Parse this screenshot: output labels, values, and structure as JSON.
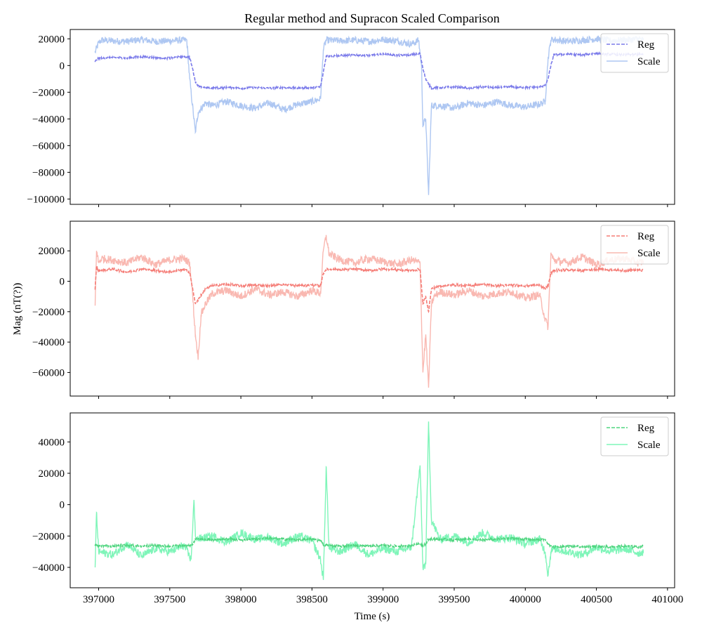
{
  "figure": {
    "title": "Regular method and Supracon Scaled Comparison",
    "ylabel": "Mag (nT(?))",
    "xlabel": "Time (s)"
  },
  "chart_data": [
    {
      "type": "line",
      "xlim": [
        396800,
        401050
      ],
      "ylim": [
        -104000,
        27000
      ],
      "yticks": [
        20000,
        0,
        -20000,
        -40000,
        -60000,
        -80000,
        -100000
      ],
      "ytick_labels": [
        "20000",
        "0",
        "−20000",
        "−40000",
        "−60000",
        "−80000",
        "−100000"
      ],
      "xticks": [
        397000,
        397500,
        398000,
        398500,
        399000,
        399500,
        400000,
        400500,
        401000
      ],
      "xtick_labels": [],
      "legend": "top-right",
      "series": [
        {
          "name": "Scale",
          "style": "solid",
          "color": "#aec7f2",
          "x": [
            396975,
            397000,
            397020,
            397100,
            397200,
            397300,
            397400,
            397500,
            397580,
            397620,
            397640,
            397660,
            397680,
            397700,
            397750,
            397800,
            397900,
            398000,
            398100,
            398200,
            398300,
            398400,
            398500,
            398560,
            398580,
            398600,
            398700,
            398800,
            398900,
            399000,
            399100,
            399200,
            399250,
            399270,
            399280,
            399300,
            399320,
            399340,
            399400,
            399500,
            399600,
            399700,
            399800,
            399900,
            400000,
            400100,
            400140,
            400160,
            400180,
            400200,
            400300,
            400400,
            400500,
            400600,
            400700,
            400800,
            400830
          ],
          "y": [
            10000,
            17000,
            19000,
            18500,
            18000,
            19500,
            18000,
            18500,
            19000,
            19000,
            -10000,
            -30000,
            -50000,
            -35000,
            -28000,
            -30000,
            -27000,
            -30000,
            -32000,
            -28000,
            -33000,
            -29000,
            -27000,
            -25000,
            12000,
            19000,
            18500,
            19000,
            18000,
            19500,
            18500,
            16000,
            19000,
            0,
            -45000,
            -40000,
            -97000,
            -30000,
            -30000,
            -32000,
            -28000,
            -30000,
            -27000,
            -30000,
            -31000,
            -29000,
            -27000,
            5000,
            19000,
            19500,
            18000,
            19000,
            20000,
            18500,
            19000,
            20000,
            19000
          ]
        },
        {
          "name": "Reg",
          "style": "dashed",
          "color": "#7b7bea",
          "x": [
            396975,
            397000,
            397100,
            397200,
            397300,
            397400,
            397500,
            397600,
            397640,
            397660,
            397680,
            397700,
            397750,
            397800,
            397900,
            398000,
            398100,
            398200,
            398300,
            398400,
            398500,
            398560,
            398580,
            398600,
            398700,
            398800,
            398900,
            399000,
            399100,
            399200,
            399260,
            399280,
            399300,
            399320,
            399340,
            399400,
            399500,
            399600,
            399700,
            399800,
            399900,
            400000,
            400100,
            400140,
            400160,
            400180,
            400200,
            400300,
            400400,
            400500,
            400600,
            400700,
            400800,
            400830
          ],
          "y": [
            3000,
            5500,
            6000,
            5500,
            6500,
            6000,
            5500,
            7000,
            6000,
            -2000,
            -12000,
            -15000,
            -17000,
            -17000,
            -16500,
            -17000,
            -16500,
            -17000,
            -16500,
            -17000,
            -16500,
            -16000,
            -5000,
            7000,
            7500,
            8000,
            7500,
            8500,
            7500,
            8000,
            9000,
            -2000,
            -10000,
            -14000,
            -17000,
            -16500,
            -16000,
            -17000,
            -16000,
            -16500,
            -16000,
            -16500,
            -16000,
            -15000,
            -10000,
            0,
            8000,
            8500,
            8000,
            9000,
            8500,
            8000,
            8500,
            8000
          ]
        }
      ]
    },
    {
      "type": "line",
      "xlim": [
        396800,
        401050
      ],
      "ylim": [
        -75500,
        39500
      ],
      "yticks": [
        20000,
        0,
        -20000,
        -40000,
        -60000
      ],
      "ytick_labels": [
        "20000",
        "0",
        "−20000",
        "−40000",
        "−60000"
      ],
      "xticks": [
        397000,
        397500,
        398000,
        398500,
        399000,
        399500,
        400000,
        400500,
        401000
      ],
      "xtick_labels": [],
      "legend": "top-right",
      "series": [
        {
          "name": "Scale",
          "style": "solid",
          "color": "#f9b8b1",
          "x": [
            396975,
            396985,
            397000,
            397020,
            397100,
            397200,
            397300,
            397400,
            397500,
            397600,
            397640,
            397660,
            397680,
            397700,
            397720,
            397750,
            397800,
            397900,
            398000,
            398100,
            398200,
            398300,
            398400,
            398500,
            398560,
            398580,
            398600,
            398620,
            398700,
            398800,
            398900,
            399000,
            399100,
            399200,
            399260,
            399280,
            399300,
            399320,
            399340,
            399360,
            399400,
            399500,
            399600,
            399700,
            399800,
            399900,
            400000,
            400100,
            400140,
            400160,
            400180,
            400200,
            400300,
            400400,
            400500,
            400600,
            400700,
            400800,
            400830
          ],
          "y": [
            -16000,
            20000,
            12000,
            15000,
            14000,
            12000,
            16000,
            11000,
            14000,
            15000,
            12000,
            -8000,
            -35000,
            -50000,
            -22000,
            -15000,
            -8000,
            -6000,
            -10000,
            -5000,
            -9000,
            -7000,
            -10000,
            -6000,
            -8000,
            20000,
            30000,
            18000,
            14000,
            12000,
            15000,
            13000,
            11000,
            14000,
            12000,
            -60000,
            -35000,
            -70000,
            -15000,
            -10000,
            -7000,
            -9000,
            -6000,
            -10000,
            -8000,
            -7000,
            -11000,
            -9000,
            -25000,
            -30000,
            18000,
            14000,
            12000,
            16000,
            11000,
            14000,
            15000,
            12000,
            13000
          ]
        },
        {
          "name": "Reg",
          "style": "dashed",
          "color": "#f57d77",
          "x": [
            396975,
            396985,
            397000,
            397100,
            397200,
            397300,
            397400,
            397500,
            397600,
            397640,
            397660,
            397680,
            397700,
            397750,
            397800,
            397900,
            398000,
            398100,
            398200,
            398300,
            398400,
            398500,
            398560,
            398580,
            398600,
            398700,
            398800,
            398900,
            399000,
            399100,
            399200,
            399260,
            399280,
            399300,
            399320,
            399340,
            399400,
            399500,
            399600,
            399700,
            399800,
            399900,
            400000,
            400100,
            400140,
            400160,
            400180,
            400200,
            400300,
            400400,
            400500,
            400600,
            400700,
            400800,
            400830
          ],
          "y": [
            -5000,
            10000,
            7000,
            8000,
            6000,
            8000,
            7000,
            6000,
            8000,
            6000,
            -4000,
            -15000,
            -12000,
            -5000,
            -3000,
            -2000,
            -3000,
            -2500,
            -3000,
            -2000,
            -3000,
            -2500,
            -3000,
            5000,
            8000,
            7500,
            8000,
            7000,
            8000,
            7500,
            7000,
            8000,
            -15000,
            -10000,
            -20000,
            -5000,
            -3000,
            -2500,
            -3000,
            -2000,
            -3000,
            -2500,
            -3000,
            -2500,
            -5000,
            -3000,
            5000,
            7000,
            7500,
            7000,
            8000,
            7500,
            7000,
            7500,
            7000
          ]
        }
      ]
    },
    {
      "type": "line",
      "xlim": [
        396800,
        401050
      ],
      "ylim": [
        -53000,
        58500
      ],
      "yticks": [
        40000,
        20000,
        0,
        -20000,
        -40000
      ],
      "ytick_labels": [
        "40000",
        "20000",
        "0",
        "−20000",
        "−40000"
      ],
      "xticks": [
        397000,
        397500,
        398000,
        398500,
        399000,
        399500,
        400000,
        400500,
        401000
      ],
      "xtick_labels": [
        "397000",
        "397500",
        "398000",
        "398500",
        "399000",
        "399500",
        "400000",
        "400500",
        "401000"
      ],
      "legend": "top-right",
      "series": [
        {
          "name": "Scale",
          "style": "solid",
          "color": "#7ff5b9",
          "x": [
            396975,
            396985,
            397000,
            397100,
            397200,
            397300,
            397400,
            397500,
            397600,
            397650,
            397670,
            397680,
            397700,
            397800,
            397900,
            398000,
            398100,
            398200,
            398300,
            398400,
            398500,
            398560,
            398580,
            398600,
            398620,
            398700,
            398800,
            398900,
            399000,
            399100,
            399200,
            399260,
            399280,
            399300,
            399320,
            399340,
            399400,
            399500,
            399600,
            399700,
            399800,
            399900,
            400000,
            400100,
            400140,
            400160,
            400180,
            400200,
            400300,
            400400,
            400500,
            400600,
            400700,
            400800,
            400830
          ],
          "y": [
            -40000,
            -5000,
            -30000,
            -32000,
            -25000,
            -33000,
            -28000,
            -30000,
            -26000,
            -35000,
            3000,
            -20000,
            -22000,
            -20000,
            -24000,
            -18000,
            -22000,
            -21000,
            -25000,
            -20000,
            -23000,
            -35000,
            -48000,
            24000,
            -28000,
            -30000,
            -25000,
            -32000,
            -28000,
            -30000,
            -27000,
            25000,
            -40000,
            -38000,
            53000,
            -10000,
            -22000,
            -20000,
            -24000,
            -18000,
            -22000,
            -21000,
            -25000,
            -22000,
            -30000,
            -45000,
            -30000,
            -28000,
            -30000,
            -32000,
            -27000,
            -30000,
            -28000,
            -31000,
            -30000
          ]
        },
        {
          "name": "Reg",
          "style": "dashed",
          "color": "#4fd57f",
          "x": [
            396975,
            397000,
            397100,
            397200,
            397300,
            397400,
            397500,
            397600,
            397660,
            397680,
            397700,
            397800,
            397900,
            398000,
            398100,
            398200,
            398300,
            398400,
            398500,
            398560,
            398580,
            398600,
            398700,
            398800,
            398900,
            399000,
            399100,
            399200,
            399260,
            399280,
            399300,
            399320,
            399400,
            399500,
            399600,
            399700,
            399800,
            399900,
            400000,
            400100,
            400140,
            400160,
            400180,
            400200,
            400300,
            400400,
            400500,
            400600,
            400700,
            400800,
            400830
          ],
          "y": [
            -26000,
            -26000,
            -26500,
            -26000,
            -26500,
            -26000,
            -26500,
            -26000,
            -26000,
            -22000,
            -22000,
            -22500,
            -22000,
            -22500,
            -22000,
            -21500,
            -22000,
            -22500,
            -22000,
            -23000,
            -26000,
            -26000,
            -26500,
            -26000,
            -26500,
            -26000,
            -26500,
            -26000,
            -25000,
            -26000,
            -25000,
            -22000,
            -22000,
            -22500,
            -22000,
            -22500,
            -22000,
            -21500,
            -22000,
            -22500,
            -22000,
            -25000,
            -26500,
            -27000,
            -26500,
            -27000,
            -26500,
            -27000,
            -26500,
            -27000,
            -26500
          ]
        }
      ]
    }
  ]
}
